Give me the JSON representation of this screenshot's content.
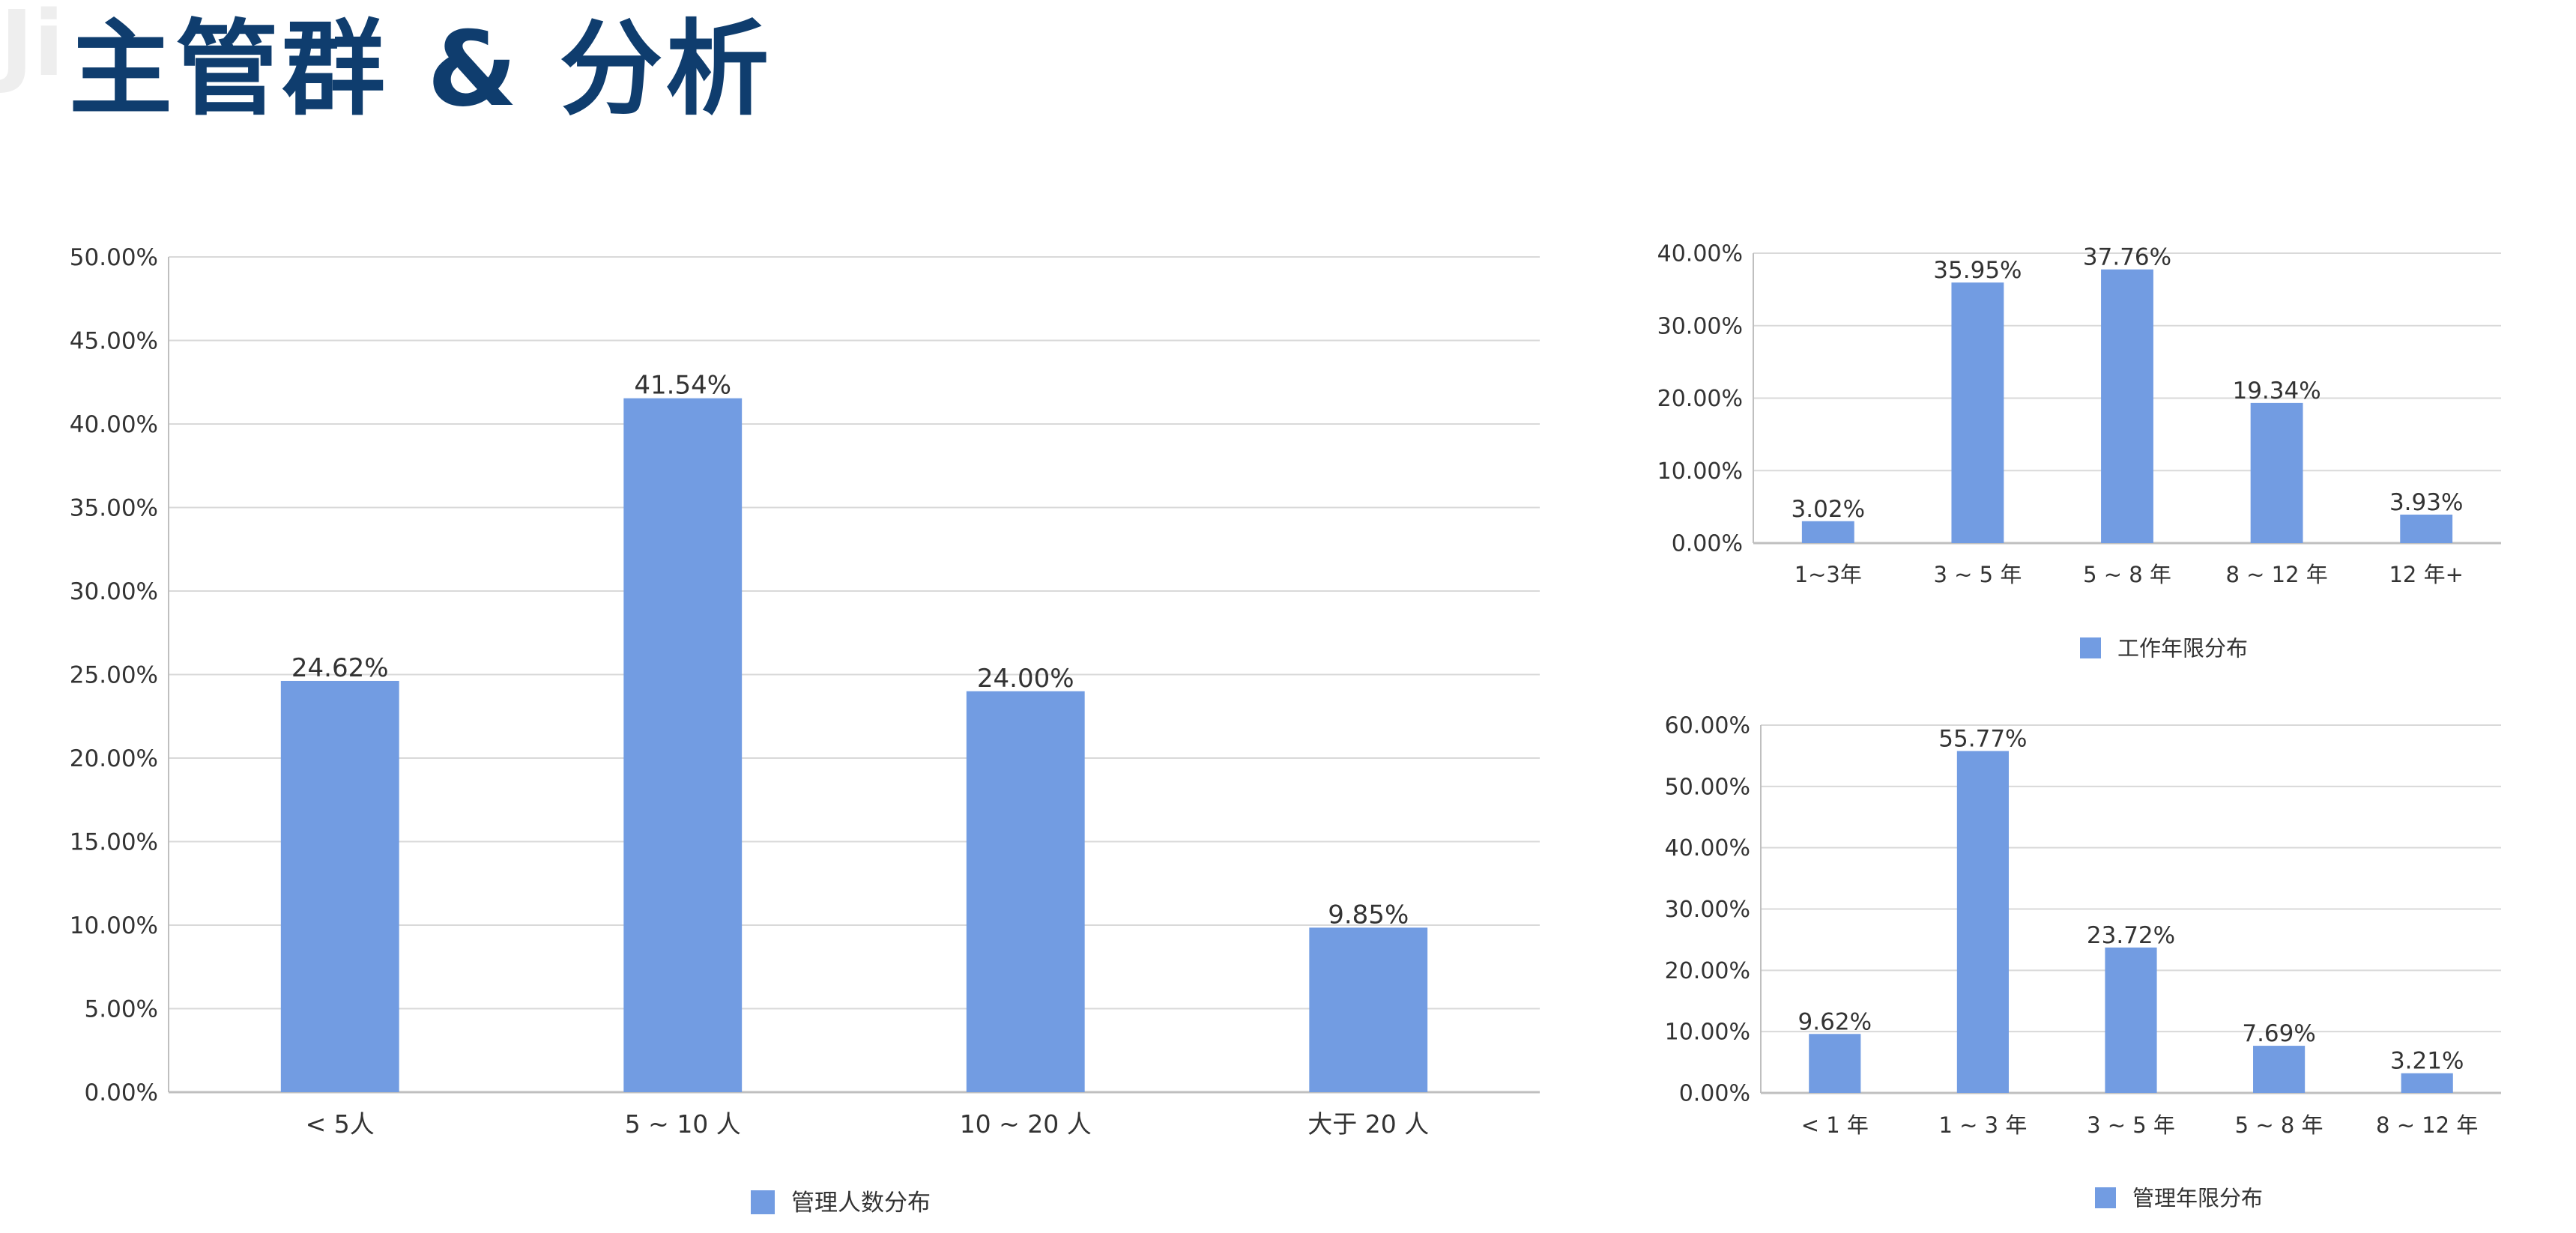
{
  "page": {
    "title": "主管群 & 分析",
    "watermark": "Ji"
  },
  "colors": {
    "title": "#0f3d6e",
    "bar": "#729ce2",
    "grid": "#d9d9d9",
    "axis": "#bfbfbf",
    "text": "#333333"
  },
  "chart_data": [
    {
      "type": "bar",
      "categories": [
        "< 5人",
        "5 ~ 10 人",
        "10 ~ 20 人",
        "大于 20 人"
      ],
      "series": [
        {
          "name": "管理人数分布",
          "values": [
            24.62,
            41.54,
            24.0,
            9.85
          ]
        }
      ],
      "value_labels": [
        "24.62%",
        "41.54%",
        "24.00%",
        "9.85%"
      ],
      "ylim": [
        0,
        50
      ],
      "yticks": [
        "0.00%",
        "5.00%",
        "10.00%",
        "15.00%",
        "20.00%",
        "25.00%",
        "30.00%",
        "35.00%",
        "40.00%",
        "45.00%",
        "50.00%"
      ],
      "grid": true,
      "legend": "bottom"
    },
    {
      "type": "bar",
      "categories": [
        "1~3年",
        "3 ~ 5 年",
        "5 ~ 8 年",
        "8 ~ 12 年",
        "12 年+"
      ],
      "series": [
        {
          "name": "工作年限分布",
          "values": [
            3.02,
            35.95,
            37.76,
            19.34,
            3.93
          ]
        }
      ],
      "value_labels": [
        "3.02%",
        "35.95%",
        "37.76%",
        "19.34%",
        "3.93%"
      ],
      "ylim": [
        0,
        40
      ],
      "yticks": [
        "0.00%",
        "10.00%",
        "20.00%",
        "30.00%",
        "40.00%"
      ],
      "grid": true,
      "legend": "bottom"
    },
    {
      "type": "bar",
      "categories": [
        "< 1 年",
        "1 ~ 3 年",
        "3 ~ 5 年",
        "5 ~ 8 年",
        "8 ~ 12 年"
      ],
      "series": [
        {
          "name": "管理年限分布",
          "values": [
            9.62,
            55.77,
            23.72,
            7.69,
            3.21
          ]
        }
      ],
      "value_labels": [
        "9.62%",
        "55.77%",
        "23.72%",
        "7.69%",
        "3.21%"
      ],
      "ylim": [
        0,
        60
      ],
      "yticks": [
        "0.00%",
        "10.00%",
        "20.00%",
        "30.00%",
        "40.00%",
        "50.00%",
        "60.00%"
      ],
      "grid": true,
      "legend": "bottom"
    }
  ]
}
